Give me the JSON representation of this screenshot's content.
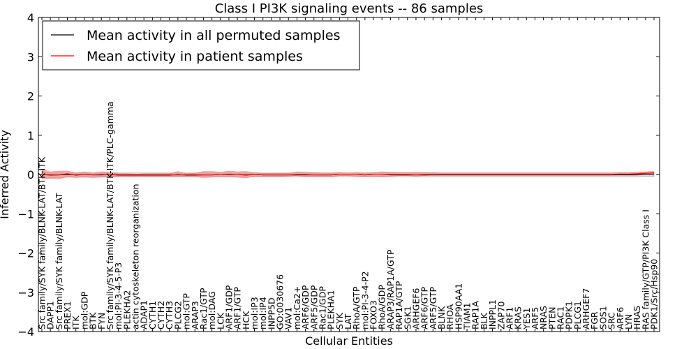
{
  "chart_data": {
    "type": "line",
    "title": "Class I PI3K signaling events -- 86 samples",
    "xlabel": "Cellular Entities",
    "ylabel": "Inferred Activity",
    "ylim": [
      -4,
      4
    ],
    "yticks": [
      -4,
      -3,
      -2,
      -1,
      0,
      1,
      2,
      3,
      4
    ],
    "ytick_labels": [
      "−4",
      "−3",
      "−2",
      "−1",
      "0",
      "1",
      "2",
      "3",
      "4"
    ],
    "legend": {
      "placement": "top-left",
      "entries": [
        {
          "label": "Mean activity in all permuted samples",
          "color": "#000000"
        },
        {
          "label": "Mean activity in patient samples",
          "color": "#ff0000"
        }
      ]
    },
    "categories": [
      "Src family/SYK family/BLNK-LAT/BTK-ITK",
      "DAPP1",
      "Src family/SYK family/BLNK-LAT",
      "PREX1",
      "ITK",
      "mol:GDP",
      "BTK",
      "FYN",
      "Src family/SYK family/BLNK-LAT/BTK-ITK/PLC-gamma",
      "mol:PI-3-4-5-P3",
      "PLEKHA2",
      "actin cytoskeleton reorganization",
      "ADAP1",
      "CYTH1",
      "CYTH2",
      "CYTH3",
      "PLCG2",
      "mol:GTP",
      "ARAP3",
      "Rac1/GTP",
      "mol:DAG",
      "LCK",
      "ARF1/GDP",
      "ARF1/GTP",
      "HCK",
      "mol:IP3",
      "mol:IP4",
      "INPP5D",
      "GO:0030676",
      "VAV1",
      "mol:Ca2+",
      "ARF6/GDP",
      "ARF5/GDP",
      "Rac1/GDP",
      "PLEKHA1",
      "SYK",
      "LAT",
      "RhoA/GTP",
      "mol:PI-3-4-P2",
      "FOXO3",
      "RhoA/GDP",
      "ARAP3/RAP1A/GTP",
      "RAP1A/GTP",
      "SGK1",
      "ARHGEF6",
      "ARF6/GTP",
      "ARF5/GTP",
      "BLNK",
      "RHOA",
      "HSP90AA1",
      "TIAM1",
      "RAP1A",
      "BLK",
      "INPPL1",
      "ZAP70",
      "ARF1",
      "KRAS",
      "YES1",
      "ARF5",
      "NRAS",
      "PTEN",
      "RAC1",
      "PDPK1",
      "PLCG1",
      "ARHGEF7",
      "FGR",
      "SOS1",
      "SRC",
      "ARF6",
      "LYN",
      "HRAS",
      "RAS family/GTP/PI3K Class I",
      "PDK1/Src/Hsp90"
    ],
    "series": [
      {
        "name": "Mean activity in patient samples",
        "color": "#ff0000",
        "values": [
          0.0,
          -0.02,
          -0.01,
          0.02,
          -0.02,
          0.0,
          -0.01,
          0.0,
          0.0,
          -0.02,
          -0.02,
          -0.02,
          -0.02,
          -0.02,
          -0.02,
          -0.02,
          0.0,
          -0.02,
          -0.02,
          -0.01,
          -0.01,
          0.0,
          0.01,
          0.0,
          -0.02,
          0.0,
          -0.01,
          -0.01,
          -0.01,
          -0.01,
          0.0,
          0.0,
          -0.01,
          -0.01,
          -0.01,
          0.0,
          0.0,
          0.0,
          -0.01,
          0.0,
          0.0,
          0.0,
          0.0,
          0.0,
          -0.01,
          0.0,
          0.0,
          0.0,
          0.0,
          0.0,
          0.0,
          0.0,
          0.0,
          0.0,
          0.0,
          0.0,
          0.0,
          0.0,
          0.0,
          0.0,
          0.0,
          0.0,
          0.0,
          0.0,
          0.0,
          0.0,
          0.0,
          0.0,
          0.01,
          0.01,
          0.02,
          0.03,
          0.04
        ],
        "lower": [
          -0.12,
          -0.1,
          -0.12,
          -0.05,
          -0.08,
          -0.06,
          -0.08,
          -0.06,
          -0.05,
          -0.06,
          -0.06,
          -0.05,
          -0.06,
          -0.06,
          -0.06,
          -0.06,
          -0.05,
          -0.06,
          -0.06,
          -0.08,
          -0.07,
          -0.05,
          -0.06,
          -0.07,
          -0.09,
          -0.05,
          -0.05,
          -0.05,
          -0.05,
          -0.04,
          -0.03,
          -0.05,
          -0.06,
          -0.05,
          -0.05,
          -0.03,
          -0.03,
          -0.04,
          -0.05,
          -0.04,
          -0.05,
          -0.04,
          -0.03,
          -0.03,
          -0.04,
          -0.03,
          -0.02,
          -0.02,
          -0.02,
          -0.02,
          -0.02,
          -0.02,
          -0.02,
          -0.02,
          -0.02,
          -0.02,
          -0.02,
          -0.02,
          -0.02,
          -0.02,
          -0.02,
          -0.02,
          -0.02,
          -0.02,
          -0.02,
          -0.02,
          -0.02,
          -0.02,
          -0.01,
          -0.01,
          0.0,
          0.0,
          0.01
        ],
        "upper": [
          0.12,
          0.07,
          0.09,
          0.09,
          0.04,
          0.07,
          0.04,
          0.07,
          0.06,
          0.02,
          0.02,
          0.01,
          0.02,
          0.02,
          0.02,
          0.02,
          0.08,
          0.02,
          0.03,
          0.08,
          0.08,
          0.06,
          0.09,
          0.07,
          0.08,
          0.05,
          0.03,
          0.03,
          0.03,
          0.03,
          0.07,
          0.06,
          0.05,
          0.04,
          0.04,
          0.05,
          0.04,
          0.05,
          0.04,
          0.05,
          0.07,
          0.06,
          0.05,
          0.05,
          0.06,
          0.05,
          0.05,
          0.04,
          0.04,
          0.04,
          0.04,
          0.04,
          0.04,
          0.04,
          0.04,
          0.04,
          0.04,
          0.04,
          0.04,
          0.04,
          0.04,
          0.04,
          0.04,
          0.04,
          0.04,
          0.04,
          0.04,
          0.04,
          0.05,
          0.05,
          0.06,
          0.07,
          0.08
        ]
      },
      {
        "name": "Mean activity in all permuted samples",
        "color": "#000000",
        "values": [
          0.0,
          -0.01,
          -0.01,
          0.0,
          -0.01,
          0.0,
          -0.01,
          -0.01,
          0.0,
          -0.01,
          -0.01,
          -0.01,
          -0.01,
          -0.01,
          -0.01,
          -0.01,
          -0.01,
          -0.01,
          -0.01,
          -0.01,
          -0.01,
          0.0,
          0.0,
          0.0,
          -0.01,
          0.0,
          -0.01,
          -0.01,
          -0.01,
          -0.01,
          -0.01,
          -0.01,
          -0.01,
          -0.01,
          -0.01,
          0.0,
          0.0,
          0.0,
          -0.01,
          0.0,
          0.0,
          -0.01,
          -0.01,
          -0.01,
          -0.01,
          -0.01,
          -0.01,
          -0.01,
          -0.01,
          -0.01,
          -0.01,
          -0.01,
          -0.01,
          -0.01,
          -0.01,
          -0.01,
          -0.01,
          -0.01,
          -0.01,
          -0.01,
          -0.01,
          -0.01,
          -0.01,
          -0.01,
          -0.01,
          -0.01,
          -0.01,
          -0.01,
          -0.01,
          -0.01,
          -0.01,
          0.0,
          0.0
        ],
        "lower": [
          -0.08,
          -0.08,
          -0.08,
          -0.07,
          -0.07,
          -0.07,
          -0.07,
          -0.07,
          -0.07,
          -0.06,
          -0.06,
          -0.06,
          -0.06,
          -0.06,
          -0.06,
          -0.06,
          -0.06,
          -0.06,
          -0.06,
          -0.06,
          -0.06,
          -0.06,
          -0.06,
          -0.06,
          -0.06,
          -0.06,
          -0.06,
          -0.06,
          -0.06,
          -0.06,
          -0.06,
          -0.06,
          -0.06,
          -0.06,
          -0.06,
          -0.06,
          -0.06,
          -0.06,
          -0.06,
          -0.06,
          -0.06,
          -0.06,
          -0.06,
          -0.06,
          -0.06,
          -0.06,
          -0.06,
          -0.06,
          -0.06,
          -0.06,
          -0.06,
          -0.06,
          -0.06,
          -0.06,
          -0.06,
          -0.06,
          -0.06,
          -0.06,
          -0.06,
          -0.06,
          -0.06,
          -0.06,
          -0.06,
          -0.06,
          -0.06,
          -0.06,
          -0.06,
          -0.06,
          -0.06,
          -0.06,
          -0.06,
          -0.05,
          -0.05
        ],
        "upper": [
          0.05,
          0.04,
          0.04,
          0.04,
          0.04,
          0.04,
          0.04,
          0.04,
          0.04,
          0.04,
          0.04,
          0.04,
          0.04,
          0.04,
          0.04,
          0.04,
          0.04,
          0.04,
          0.04,
          0.04,
          0.04,
          0.04,
          0.04,
          0.04,
          0.04,
          0.04,
          0.04,
          0.04,
          0.04,
          0.04,
          0.04,
          0.04,
          0.04,
          0.04,
          0.04,
          0.04,
          0.04,
          0.04,
          0.04,
          0.04,
          0.04,
          0.04,
          0.04,
          0.04,
          0.04,
          0.04,
          0.04,
          0.04,
          0.04,
          0.04,
          0.04,
          0.04,
          0.04,
          0.04,
          0.04,
          0.04,
          0.04,
          0.04,
          0.04,
          0.04,
          0.04,
          0.04,
          0.04,
          0.04,
          0.04,
          0.04,
          0.04,
          0.04,
          0.04,
          0.04,
          0.04,
          0.05,
          0.05
        ]
      }
    ]
  }
}
